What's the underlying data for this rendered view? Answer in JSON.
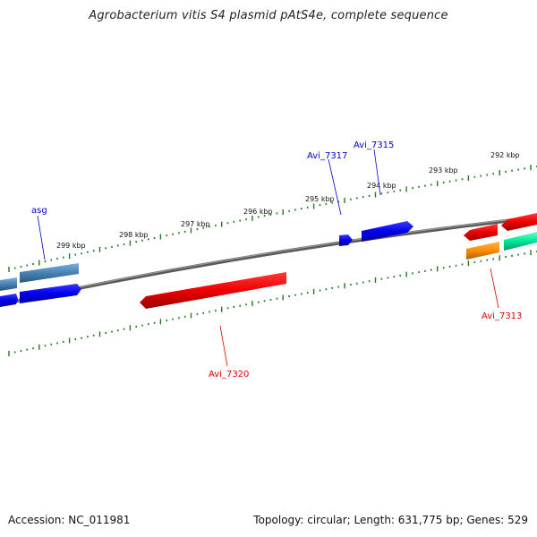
{
  "title": "Agrobacterium vitis S4 plasmid pAtS4e, complete sequence",
  "footer": {
    "accession": "Accession: NC_011981",
    "summary": "Topology: circular; Length: 631,775 bp; Genes: 529"
  },
  "scale_labels": [
    "299 kbp",
    "298 kbp",
    "297 kbp",
    "296 kbp",
    "295 kbp",
    "294 kbp",
    "293 kbp",
    "292 kbp"
  ],
  "gene_labels": [
    {
      "text": "asg",
      "strand": "forward",
      "color": "#0000cc"
    },
    {
      "text": "Avi_7317",
      "strand": "forward",
      "color": "#0000cc"
    },
    {
      "text": "Avi_7315",
      "strand": "forward",
      "color": "#0000cc"
    },
    {
      "text": "Avi_7313",
      "strand": "reverse",
      "color": "#dd0000"
    },
    {
      "text": "Avi_7320",
      "strand": "reverse",
      "color": "#dd0000"
    }
  ],
  "feature_colors": {
    "forward_cds": "#0000ee",
    "reverse_cds": "#ee0000",
    "steel_blue": "#4682b4",
    "orange": "#ff8c00",
    "spring_green": "#00e69a",
    "backbone": "#777777",
    "tick": "#227722"
  }
}
